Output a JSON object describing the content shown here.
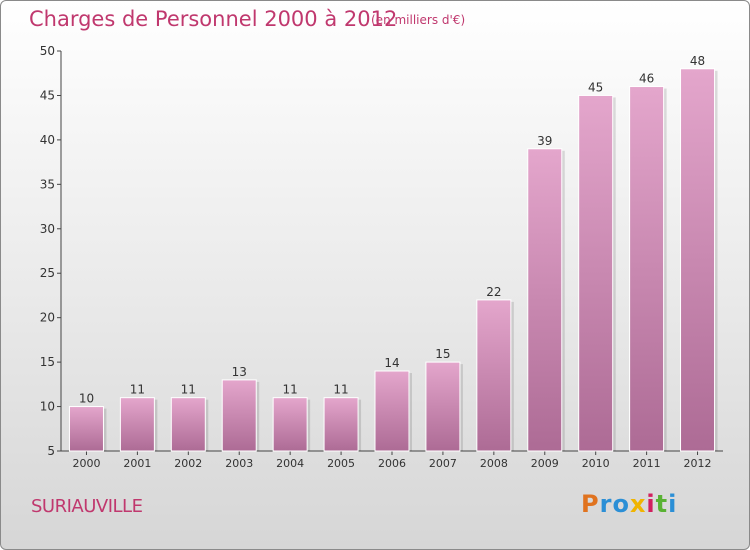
{
  "title": "Charges de Personnel 2000 à 2012",
  "subtitle": "(en milliers d'€)",
  "commune": "SURIAUVILLE",
  "logo": {
    "text": "Proxiti",
    "colors": [
      "#e0731f",
      "#2b8fd6",
      "#2b8fd6",
      "#f0b400",
      "#d11f5e",
      "#59b233",
      "#2b8fd6"
    ]
  },
  "colors": {
    "accent": "#c0386e",
    "bar_top": "#e4a6cc",
    "bar_bottom": "#ad6b95"
  },
  "chart_data": {
    "type": "bar",
    "categories": [
      "2000",
      "2001",
      "2002",
      "2003",
      "2004",
      "2005",
      "2006",
      "2007",
      "2008",
      "2009",
      "2010",
      "2011",
      "2012"
    ],
    "values": [
      10,
      11,
      11,
      13,
      11,
      11,
      14,
      15,
      22,
      39,
      45,
      46,
      48
    ],
    "ylim": [
      5,
      50
    ],
    "yticks": [
      5,
      10,
      15,
      20,
      25,
      30,
      35,
      40,
      45,
      50
    ],
    "grid": false
  }
}
